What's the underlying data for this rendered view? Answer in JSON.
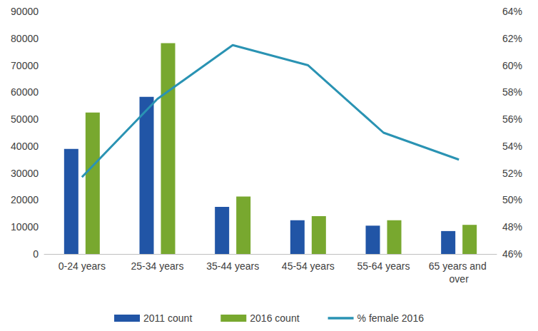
{
  "chart_data": {
    "type": "bar",
    "categories": [
      "0-24 years",
      "25-34 years",
      "35-44 years",
      "45-54 years",
      "55-64 years",
      "65 years and over"
    ],
    "series": [
      {
        "name": "2011 count",
        "type": "bar",
        "color": "#2155a6",
        "values": [
          39000,
          58300,
          17500,
          12500,
          10500,
          8500
        ]
      },
      {
        "name": "2016 count",
        "type": "bar",
        "color": "#78a82f",
        "values": [
          52500,
          78200,
          21300,
          14000,
          12500,
          10800
        ]
      },
      {
        "name": "% female 2016",
        "type": "line",
        "axis": "y2",
        "color": "#2a93b3",
        "values": [
          51.7,
          57.5,
          61.5,
          60,
          55,
          53
        ]
      }
    ],
    "ylim": [
      0,
      90000
    ],
    "yticks": [
      0,
      10000,
      20000,
      30000,
      40000,
      50000,
      60000,
      70000,
      80000,
      90000
    ],
    "y2lim": [
      46,
      64
    ],
    "y2ticks": [
      {
        "value": 46,
        "label": "46%"
      },
      {
        "value": 48,
        "label": "48%"
      },
      {
        "value": 50,
        "label": "50%"
      },
      {
        "value": 52,
        "label": "52%"
      },
      {
        "value": 54,
        "label": "54%"
      },
      {
        "value": 56,
        "label": "56%"
      },
      {
        "value": 58,
        "label": "58%"
      },
      {
        "value": 60,
        "label": "60%"
      },
      {
        "value": 62,
        "label": "62%"
      },
      {
        "value": 64,
        "label": "64%"
      }
    ],
    "grid": false,
    "legend": "bottom"
  }
}
